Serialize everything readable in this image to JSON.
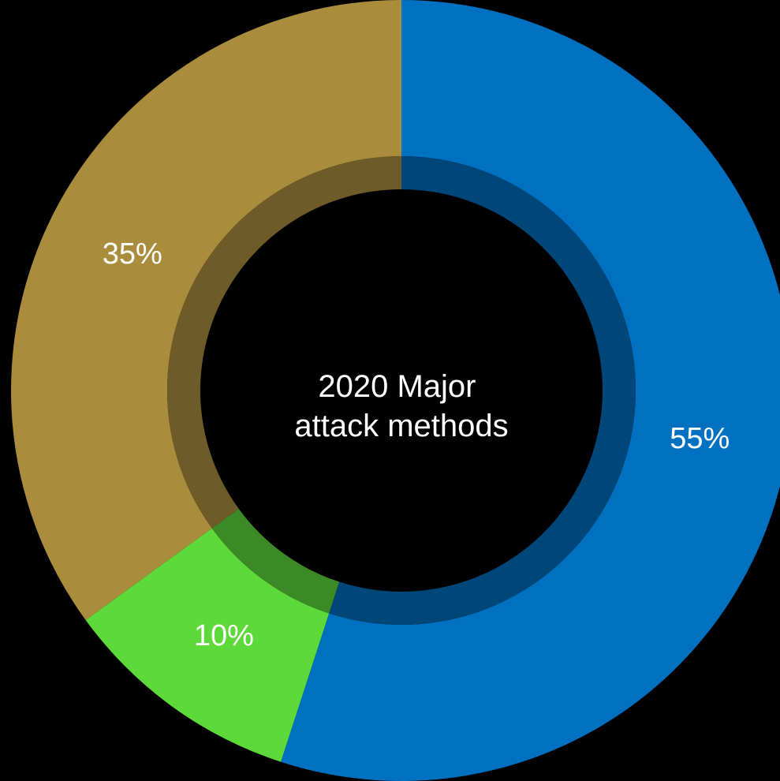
{
  "chart_data": {
    "type": "pie",
    "style": "donut",
    "title_lines": [
      "2020  Major",
      "attack methods"
    ],
    "slices": [
      {
        "value": 55,
        "label": "55%",
        "color": "#0070C0",
        "inner_color": "#004779"
      },
      {
        "value": 10,
        "label": "10%",
        "color": "#5DD939",
        "inner_color": "#3C8A26"
      },
      {
        "value": 35,
        "label": "35%",
        "color": "#A98D3D",
        "inner_color": "#6E5B27"
      }
    ],
    "start": "top",
    "direction": "clockwise",
    "legend": "none"
  }
}
